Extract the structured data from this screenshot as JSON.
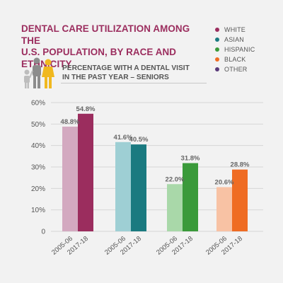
{
  "title_lines": [
    "DENTAL CARE UTILIZATION AMONG THE",
    "U.S. POPULATION, BY RACE AND ETHNICITY"
  ],
  "subtitle_lines": [
    "PERCENTAGE WITH A DENTAL VISIT",
    "IN THE PAST YEAR – SENIORS"
  ],
  "legend": [
    {
      "label": "WHITE",
      "color": "#9b2d5e"
    },
    {
      "label": "ASIAN",
      "color": "#1a7a80"
    },
    {
      "label": "HISPANIC",
      "color": "#3a9a3a"
    },
    {
      "label": "BLACK",
      "color": "#ef6c23"
    },
    {
      "label": "OTHER",
      "color": "#5a3a7a"
    }
  ],
  "icon": "family-icon",
  "chart_data": {
    "type": "bar",
    "title": "",
    "xlabel": "",
    "ylabel": "",
    "ylim": [
      0,
      60
    ],
    "yticks": [
      "0",
      "10%",
      "20%",
      "30%",
      "40%",
      "50%",
      "60%"
    ],
    "grid": true,
    "groups": [
      {
        "name": "WHITE",
        "bars": [
          {
            "period": "2005-06",
            "value": 48.8,
            "label": "48.8%",
            "color": "#d3a9c0"
          },
          {
            "period": "2017-18",
            "value": 54.8,
            "label": "54.8%",
            "color": "#9b2d5e"
          }
        ]
      },
      {
        "name": "ASIAN",
        "bars": [
          {
            "period": "2005-06",
            "value": 41.6,
            "label": "41.6%",
            "color": "#9ecfd4"
          },
          {
            "period": "2017-18",
            "value": 40.5,
            "label": "40.5%",
            "color": "#1a7a80"
          }
        ]
      },
      {
        "name": "HISPANIC",
        "bars": [
          {
            "period": "2005-06",
            "value": 22.0,
            "label": "22.0%",
            "color": "#a9d8a9"
          },
          {
            "period": "2017-18",
            "value": 31.8,
            "label": "31.8%",
            "color": "#3a9a3a"
          }
        ]
      },
      {
        "name": "BLACK",
        "bars": [
          {
            "period": "2005-06",
            "value": 20.6,
            "label": "20.6%",
            "color": "#f8c2a4"
          },
          {
            "period": "2017-18",
            "value": 28.8,
            "label": "28.8%",
            "color": "#ef6c23"
          }
        ]
      }
    ]
  }
}
